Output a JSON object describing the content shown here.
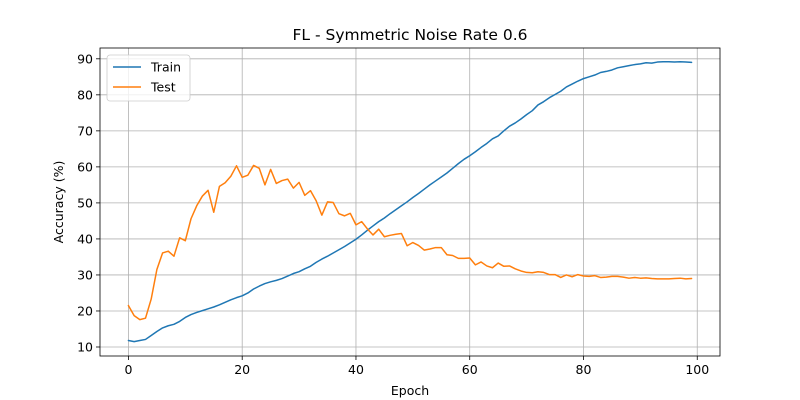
{
  "chart_data": {
    "type": "line",
    "title": "FL - Symmetric Noise Rate 0.6",
    "xlabel": "Epoch",
    "ylabel": "Accuracy (%)",
    "xlim": [
      -5,
      104
    ],
    "ylim": [
      7.5,
      93
    ],
    "xticks": [
      0,
      20,
      40,
      60,
      80,
      100
    ],
    "yticks": [
      10,
      20,
      30,
      40,
      50,
      60,
      70,
      80,
      90
    ],
    "grid": true,
    "legend_position": "top-left",
    "series": [
      {
        "name": "Train",
        "color": "#1f77b4",
        "values": [
          11.8,
          11.5,
          11.8,
          12.1,
          13.2,
          14.3,
          15.3,
          15.9,
          16.3,
          17.1,
          18.2,
          19.0,
          19.6,
          20.1,
          20.6,
          21.1,
          21.7,
          22.4,
          23.1,
          23.7,
          24.2,
          25.0,
          26.1,
          26.9,
          27.6,
          28.1,
          28.5,
          29.0,
          29.7,
          30.4,
          30.9,
          31.7,
          32.4,
          33.5,
          34.4,
          35.2,
          36.1,
          37.0,
          37.9,
          38.9,
          39.9,
          41.1,
          42.4,
          43.6,
          44.8,
          45.8,
          47.0,
          48.1,
          49.2,
          50.3,
          51.5,
          52.6,
          53.8,
          55.0,
          56.1,
          57.2,
          58.3,
          59.6,
          60.9,
          62.1,
          63.1,
          64.2,
          65.4,
          66.5,
          67.8,
          68.6,
          70.0,
          71.3,
          72.2,
          73.3,
          74.5,
          75.6,
          77.2,
          78.1,
          79.2,
          80.1,
          81.0,
          82.2,
          83.0,
          83.8,
          84.5,
          85.0,
          85.5,
          86.2,
          86.5,
          86.9,
          87.5,
          87.8,
          88.1,
          88.4,
          88.6,
          88.9,
          88.8,
          89.1,
          89.2,
          89.2,
          89.1,
          89.2,
          89.1,
          89.0
        ]
      },
      {
        "name": "Test",
        "color": "#ff7f0e",
        "values": [
          21.5,
          18.7,
          17.6,
          18.0,
          23.3,
          31.5,
          36.1,
          36.6,
          35.2,
          40.3,
          39.5,
          45.6,
          49.2,
          51.9,
          53.5,
          47.4,
          54.6,
          55.6,
          57.4,
          60.3,
          57.1,
          57.7,
          60.4,
          59.6,
          55.0,
          59.3,
          55.4,
          56.2,
          56.6,
          54.1,
          55.7,
          52.1,
          53.4,
          50.6,
          46.6,
          50.3,
          50.1,
          47.0,
          46.4,
          47.1,
          43.9,
          44.8,
          42.8,
          41.1,
          42.7,
          40.6,
          41.0,
          41.3,
          41.5,
          38.1,
          39.0,
          38.2,
          36.9,
          37.2,
          37.6,
          37.6,
          35.6,
          35.4,
          34.6,
          34.6,
          34.7,
          32.8,
          33.6,
          32.5,
          32.0,
          33.3,
          32.4,
          32.5,
          31.7,
          31.1,
          30.7,
          30.6,
          30.9,
          30.7,
          30.1,
          30.1,
          29.3,
          30.0,
          29.5,
          30.1,
          29.7,
          29.6,
          29.8,
          29.3,
          29.4,
          29.6,
          29.6,
          29.4,
          29.1,
          29.3,
          29.1,
          29.2,
          29.0,
          28.9,
          28.9,
          28.9,
          29.0,
          29.1,
          28.9,
          29.0
        ]
      }
    ]
  }
}
